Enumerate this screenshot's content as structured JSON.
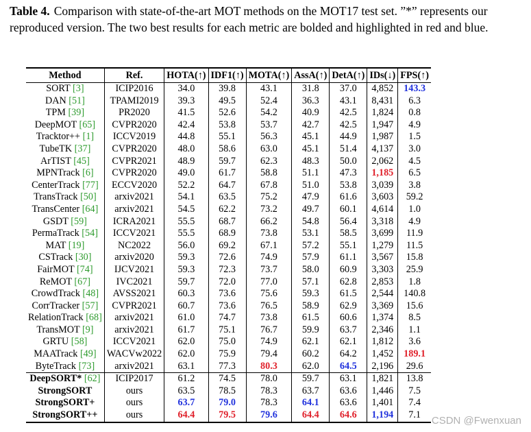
{
  "caption": {
    "label": "Table 4.",
    "text": "Comparison with state-of-the-art MOT methods on the MOT17 test set. ”*” represents our reproduced version. The two best results for each metric are bolded and highlighted in red and blue."
  },
  "headers": [
    "Method",
    "Ref.",
    "HOTA(↑)",
    "IDF1(↑)",
    "MOTA(↑)",
    "AssA(↑)",
    "DetA(↑)",
    "IDs(↓)",
    "FPS(↑)"
  ],
  "colors": {
    "best": "#e0212b",
    "second": "#2233dd",
    "citation": "#2e9b2e"
  },
  "rows": [
    {
      "name": "SORT",
      "cite": "[3]",
      "ref": "ICIP2016",
      "v": [
        "34.0",
        "39.8",
        "43.1",
        "31.8",
        "37.0",
        "4,852",
        "143.3"
      ],
      "hl": [
        0,
        0,
        0,
        0,
        0,
        0,
        2
      ]
    },
    {
      "name": "DAN",
      "cite": "[51]",
      "ref": "TPAMI2019",
      "v": [
        "39.3",
        "49.5",
        "52.4",
        "36.3",
        "43.1",
        "8,431",
        "6.3"
      ],
      "hl": [
        0,
        0,
        0,
        0,
        0,
        0,
        0
      ]
    },
    {
      "name": "TPM",
      "cite": "[39]",
      "ref": "PR2020",
      "v": [
        "41.5",
        "52.6",
        "54.2",
        "40.9",
        "42.5",
        "1,824",
        "0.8"
      ],
      "hl": [
        0,
        0,
        0,
        0,
        0,
        0,
        0
      ]
    },
    {
      "name": "DeepMOT",
      "cite": "[65]",
      "ref": "CVPR2020",
      "v": [
        "42.4",
        "53.8",
        "53.7",
        "42.7",
        "42.5",
        "1,947",
        "4.9"
      ],
      "hl": [
        0,
        0,
        0,
        0,
        0,
        0,
        0
      ]
    },
    {
      "name": "Tracktor++",
      "cite": "[1]",
      "ref": "ICCV2019",
      "v": [
        "44.8",
        "55.1",
        "56.3",
        "45.1",
        "44.9",
        "1,987",
        "1.5"
      ],
      "hl": [
        0,
        0,
        0,
        0,
        0,
        0,
        0
      ]
    },
    {
      "name": "TubeTK",
      "cite": "[37]",
      "ref": "CVPR2020",
      "v": [
        "48.0",
        "58.6",
        "63.0",
        "45.1",
        "51.4",
        "4,137",
        "3.0"
      ],
      "hl": [
        0,
        0,
        0,
        0,
        0,
        0,
        0
      ]
    },
    {
      "name": "ArTIST",
      "cite": "[45]",
      "ref": "CVPR2021",
      "v": [
        "48.9",
        "59.7",
        "62.3",
        "48.3",
        "50.0",
        "2,062",
        "4.5"
      ],
      "hl": [
        0,
        0,
        0,
        0,
        0,
        0,
        0
      ]
    },
    {
      "name": "MPNTrack",
      "cite": "[6]",
      "ref": "CVPR2020",
      "v": [
        "49.0",
        "61.7",
        "58.8",
        "51.1",
        "47.3",
        "1,185",
        "6.5"
      ],
      "hl": [
        0,
        0,
        0,
        0,
        0,
        1,
        0
      ]
    },
    {
      "name": "CenterTrack",
      "cite": "[77]",
      "ref": "ECCV2020",
      "v": [
        "52.2",
        "64.7",
        "67.8",
        "51.0",
        "53.8",
        "3,039",
        "3.8"
      ],
      "hl": [
        0,
        0,
        0,
        0,
        0,
        0,
        0
      ]
    },
    {
      "name": "TransTrack",
      "cite": "[50]",
      "ref": "arxiv2021",
      "v": [
        "54.1",
        "63.5",
        "75.2",
        "47.9",
        "61.6",
        "3,603",
        "59.2"
      ],
      "hl": [
        0,
        0,
        0,
        0,
        0,
        0,
        0
      ]
    },
    {
      "name": "TransCenter",
      "cite": "[64]",
      "ref": "arxiv2021",
      "v": [
        "54.5",
        "62.2",
        "73.2",
        "49.7",
        "60.1",
        "4,614",
        "1.0"
      ],
      "hl": [
        0,
        0,
        0,
        0,
        0,
        0,
        0
      ]
    },
    {
      "name": "GSDT",
      "cite": "[59]",
      "ref": "ICRA2021",
      "v": [
        "55.5",
        "68.7",
        "66.2",
        "54.8",
        "56.4",
        "3,318",
        "4.9"
      ],
      "hl": [
        0,
        0,
        0,
        0,
        0,
        0,
        0
      ]
    },
    {
      "name": "PermaTrack",
      "cite": "[54]",
      "ref": "ICCV2021",
      "v": [
        "55.5",
        "68.9",
        "73.8",
        "53.1",
        "58.5",
        "3,699",
        "11.9"
      ],
      "hl": [
        0,
        0,
        0,
        0,
        0,
        0,
        0
      ]
    },
    {
      "name": "MAT",
      "cite": "[19]",
      "ref": "NC2022",
      "v": [
        "56.0",
        "69.2",
        "67.1",
        "57.2",
        "55.1",
        "1,279",
        "11.5"
      ],
      "hl": [
        0,
        0,
        0,
        0,
        0,
        0,
        0
      ]
    },
    {
      "name": "CSTrack",
      "cite": "[30]",
      "ref": "arxiv2020",
      "v": [
        "59.3",
        "72.6",
        "74.9",
        "57.9",
        "61.1",
        "3,567",
        "15.8"
      ],
      "hl": [
        0,
        0,
        0,
        0,
        0,
        0,
        0
      ]
    },
    {
      "name": "FairMOT",
      "cite": "[74]",
      "ref": "IJCV2021",
      "v": [
        "59.3",
        "72.3",
        "73.7",
        "58.0",
        "60.9",
        "3,303",
        "25.9"
      ],
      "hl": [
        0,
        0,
        0,
        0,
        0,
        0,
        0
      ]
    },
    {
      "name": "ReMOT",
      "cite": "[67]",
      "ref": "IVC2021",
      "v": [
        "59.7",
        "72.0",
        "77.0",
        "57.1",
        "62.8",
        "2,853",
        "1.8"
      ],
      "hl": [
        0,
        0,
        0,
        0,
        0,
        0,
        0
      ]
    },
    {
      "name": "CrowdTrack",
      "cite": "[48]",
      "ref": "AVSS2021",
      "v": [
        "60.3",
        "73.6",
        "75.6",
        "59.3",
        "61.5",
        "2,544",
        "140.8"
      ],
      "hl": [
        0,
        0,
        0,
        0,
        0,
        0,
        0
      ]
    },
    {
      "name": "CorrTracker",
      "cite": "[57]",
      "ref": "CVPR2021",
      "v": [
        "60.7",
        "73.6",
        "76.5",
        "58.9",
        "62.9",
        "3,369",
        "15.6"
      ],
      "hl": [
        0,
        0,
        0,
        0,
        0,
        0,
        0
      ]
    },
    {
      "name": "RelationTrack",
      "cite": "[68]",
      "ref": "arxiv2021",
      "v": [
        "61.0",
        "74.7",
        "73.8",
        "61.5",
        "60.6",
        "1,374",
        "8.5"
      ],
      "hl": [
        0,
        0,
        0,
        0,
        0,
        0,
        0
      ]
    },
    {
      "name": "TransMOT",
      "cite": "[9]",
      "ref": "arxiv2021",
      "v": [
        "61.7",
        "75.1",
        "76.7",
        "59.9",
        "63.7",
        "2,346",
        "1.1"
      ],
      "hl": [
        0,
        0,
        0,
        0,
        0,
        0,
        0
      ]
    },
    {
      "name": "GRTU",
      "cite": "[58]",
      "ref": "ICCV2021",
      "v": [
        "62.0",
        "75.0",
        "74.9",
        "62.1",
        "62.1",
        "1,812",
        "3.6"
      ],
      "hl": [
        0,
        0,
        0,
        0,
        0,
        0,
        0
      ]
    },
    {
      "name": "MAATrack",
      "cite": "[49]",
      "ref": "WACVw2022",
      "v": [
        "62.0",
        "75.9",
        "79.4",
        "60.2",
        "64.2",
        "1,452",
        "189.1"
      ],
      "hl": [
        0,
        0,
        0,
        0,
        0,
        0,
        1
      ]
    },
    {
      "name": "ByteTrack",
      "cite": "[73]",
      "ref": "arxiv2021",
      "v": [
        "63.1",
        "77.3",
        "80.3",
        "62.0",
        "64.5",
        "2,196",
        "29.6"
      ],
      "hl": [
        0,
        0,
        1,
        0,
        2,
        0,
        0
      ]
    }
  ],
  "ours_rows": [
    {
      "name": "DeepSORT*",
      "cite": "[62]",
      "ref": "ICIP2017",
      "v": [
        "61.2",
        "74.5",
        "78.0",
        "59.7",
        "63.1",
        "1,821",
        "13.8"
      ],
      "hl": [
        0,
        0,
        0,
        0,
        0,
        0,
        0
      ]
    },
    {
      "name": "StrongSORT",
      "cite": "",
      "ref": "ours",
      "v": [
        "63.5",
        "78.5",
        "78.3",
        "63.7",
        "63.6",
        "1,446",
        "7.5"
      ],
      "hl": [
        0,
        0,
        0,
        0,
        0,
        0,
        0
      ]
    },
    {
      "name": "StrongSORT+",
      "cite": "",
      "ref": "ours",
      "v": [
        "63.7",
        "79.0",
        "78.3",
        "64.1",
        "63.6",
        "1,401",
        "7.4"
      ],
      "hl": [
        2,
        2,
        0,
        2,
        0,
        0,
        0
      ]
    },
    {
      "name": "StrongSORT++",
      "cite": "",
      "ref": "ours",
      "v": [
        "64.4",
        "79.5",
        "79.6",
        "64.4",
        "64.6",
        "1,194",
        "7.1"
      ],
      "hl": [
        1,
        1,
        2,
        1,
        1,
        2,
        0
      ]
    }
  ],
  "watermark": "CSDN @Fwenxuan"
}
